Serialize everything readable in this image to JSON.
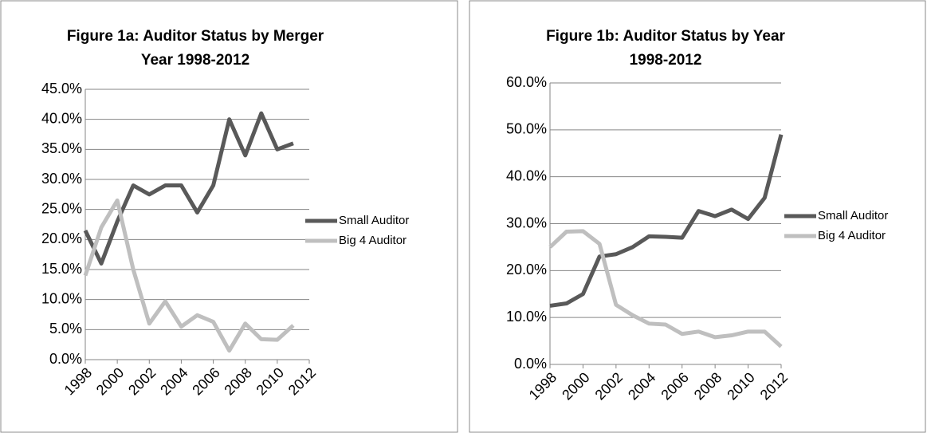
{
  "chart_data": [
    {
      "type": "line",
      "title": [
        "Figure 1a: Auditor Status by Merger",
        "Year 1998-2012"
      ],
      "x": [
        1998,
        1999,
        2000,
        2001,
        2002,
        2003,
        2004,
        2005,
        2006,
        2007,
        2008,
        2009,
        2010,
        2011
      ],
      "series": [
        {
          "name": "Small Auditor",
          "color": "#595959",
          "values": [
            21.5,
            16,
            23,
            29,
            27.5,
            29,
            29,
            24.5,
            29,
            40,
            34,
            41,
            35,
            36
          ]
        },
        {
          "name": "Big 4 Auditor",
          "color": "#bfbfbf",
          "values": [
            14,
            22,
            26.5,
            15,
            6,
            9.7,
            5.5,
            7.4,
            6.3,
            1.5,
            6,
            3.4,
            3.3,
            5.7
          ]
        }
      ],
      "xlim": [
        1998,
        2012
      ],
      "xticks": [
        1998,
        2000,
        2002,
        2004,
        2006,
        2008,
        2010,
        2012
      ],
      "ylim": [
        0,
        45
      ],
      "yticks": [
        {
          "value": 0,
          "label": "0.0%"
        },
        {
          "value": 5,
          "label": "5.0%"
        },
        {
          "value": 10,
          "label": "10.0%"
        },
        {
          "value": 15,
          "label": "15.0%"
        },
        {
          "value": 20,
          "label": "20.0%"
        },
        {
          "value": 25,
          "label": "25.0%"
        },
        {
          "value": 30,
          "label": "30.0%"
        },
        {
          "value": 35,
          "label": "35.0%"
        },
        {
          "value": 40,
          "label": "40.0%"
        },
        {
          "value": 45,
          "label": "45.0%"
        }
      ],
      "grid": true,
      "legend": "right"
    },
    {
      "type": "line",
      "title": [
        "Figure 1b: Auditor Status by Year",
        "1998-2012"
      ],
      "x": [
        1998,
        1999,
        2000,
        2001,
        2002,
        2003,
        2004,
        2005,
        2006,
        2007,
        2008,
        2009,
        2010,
        2011,
        2012
      ],
      "series": [
        {
          "name": "Small Auditor",
          "color": "#595959",
          "values": [
            12.5,
            13,
            15,
            23,
            23.5,
            25,
            27.3,
            27.2,
            27,
            32.7,
            31.6,
            33,
            31,
            35.5,
            49
          ]
        },
        {
          "name": "Big 4 Auditor",
          "color": "#bfbfbf",
          "values": [
            25,
            28.3,
            28.4,
            25.7,
            12.7,
            10.5,
            8.7,
            8.5,
            6.5,
            7,
            5.8,
            6.2,
            7,
            7,
            3.8
          ]
        }
      ],
      "xlim": [
        1998,
        2012
      ],
      "xticks": [
        1998,
        2000,
        2002,
        2004,
        2006,
        2008,
        2010,
        2012
      ],
      "ylim": [
        0,
        60
      ],
      "yticks": [
        {
          "value": 0,
          "label": "0.0%"
        },
        {
          "value": 10,
          "label": "10.0%"
        },
        {
          "value": 20,
          "label": "20.0%"
        },
        {
          "value": 30,
          "label": "30.0%"
        },
        {
          "value": 40,
          "label": "40.0%"
        },
        {
          "value": 50,
          "label": "50.0%"
        },
        {
          "value": 60,
          "label": "60.0%"
        }
      ],
      "grid": true,
      "legend": "right"
    }
  ]
}
